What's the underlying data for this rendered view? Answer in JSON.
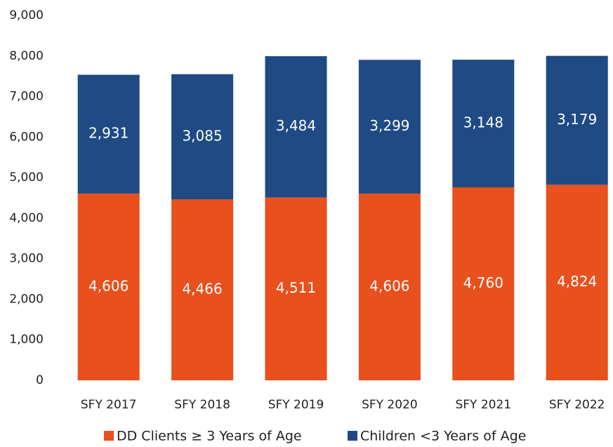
{
  "chart_data": {
    "type": "stacked_bar",
    "categories": [
      "SFY 2017",
      "SFY 2018",
      "SFY 2019",
      "SFY 2020",
      "SFY 2021",
      "SFY 2022"
    ],
    "series": [
      {
        "name": "DD Clients ≥ 3 Years of Age",
        "color": "#e8501e",
        "values": [
          4606,
          4466,
          4511,
          4606,
          4760,
          4824
        ],
        "value_labels": [
          "4,606",
          "4,466",
          "4,511",
          "4,606",
          "4,760",
          "4,824"
        ]
      },
      {
        "name": "Children <3 Years of Age",
        "color": "#1f4a84",
        "values": [
          2931,
          3085,
          3484,
          3299,
          3148,
          3179
        ],
        "value_labels": [
          "2,931",
          "3,085",
          "3,484",
          "3,299",
          "3,148",
          "3,179"
        ]
      }
    ],
    "ylim": [
      0,
      9000
    ],
    "yticks": [
      0,
      {
        "value": 1000,
        "label": "1,000"
      },
      {
        "value": 2000,
        "label": "2,000"
      },
      {
        "value": 3000,
        "label": "3,000"
      },
      {
        "value": 4000,
        "label": "4,000"
      },
      {
        "value": 5000,
        "label": "5,000"
      },
      {
        "value": 6000,
        "label": "6,000"
      },
      {
        "value": 7000,
        "label": "7,000"
      },
      {
        "value": 8000,
        "label": "8,000"
      },
      {
        "value": 9000,
        "label": "9,000"
      }
    ],
    "legend": "bottom"
  }
}
